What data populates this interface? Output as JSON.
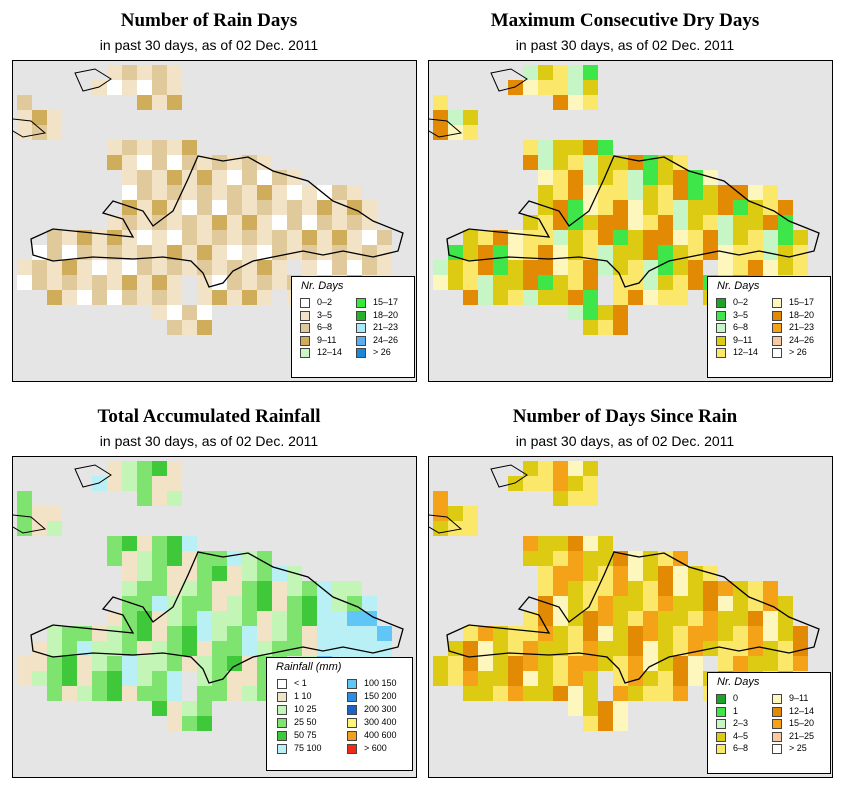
{
  "panels": [
    {
      "title": "Number of Rain Days",
      "subtitle": "in past 30 days, as of  02 Dec. 2011",
      "legend": {
        "title": "Nr. Days",
        "items": [
          {
            "label": "0–2",
            "color": "#ffffff"
          },
          {
            "label": "3–5",
            "color": "#f3e3c6"
          },
          {
            "label": "6–8",
            "color": "#e0c99a"
          },
          {
            "label": "9–11",
            "color": "#cfad5a"
          },
          {
            "label": "12–14",
            "color": "#c9f7c5"
          },
          {
            "label": "15–17",
            "color": "#35e83a"
          },
          {
            "label": "18–20",
            "color": "#27b02a"
          },
          {
            "label": "21–23",
            "color": "#a9e8f6"
          },
          {
            "label": "24–26",
            "color": "#5aaef0"
          },
          {
            "label": "> 26",
            "color": "#1c86d8"
          }
        ]
      }
    },
    {
      "title": "Maximum Consecutive Dry Days",
      "subtitle": "in past 30 days, as of  02 Dec. 2011",
      "legend": {
        "title": "Nr. Days",
        "items": [
          {
            "label": "0–2",
            "color": "#1ca32a"
          },
          {
            "label": "3–5",
            "color": "#3ee64a"
          },
          {
            "label": "6–8",
            "color": "#c6f6c6"
          },
          {
            "label": "9–11",
            "color": "#dccb12"
          },
          {
            "label": "12–14",
            "color": "#fbe86a"
          },
          {
            "label": "15–17",
            "color": "#fdf7be"
          },
          {
            "label": "18–20",
            "color": "#e38a05"
          },
          {
            "label": "21–23",
            "color": "#f4a318"
          },
          {
            "label": "24–26",
            "color": "#f8c9a4"
          },
          {
            "label": "> 26",
            "color": "#ffffff"
          }
        ]
      }
    },
    {
      "title": "Total Accumulated Rainfall",
      "subtitle": "in past 30 days, as of  02 Dec. 2011",
      "legend": {
        "title": "Rainfall (mm)",
        "items": [
          {
            "label": "< 1",
            "color": "#ffffff"
          },
          {
            "label": "1   10",
            "color": "#f3e3c6"
          },
          {
            "label": "10   25",
            "color": "#c3f5b6"
          },
          {
            "label": "25   50",
            "color": "#7fe36f"
          },
          {
            "label": "50   75",
            "color": "#3ec83a"
          },
          {
            "label": "75   100",
            "color": "#b9f0f6"
          },
          {
            "label": "100   150",
            "color": "#5fc6f5"
          },
          {
            "label": "150   200",
            "color": "#2c8de8"
          },
          {
            "label": "200   300",
            "color": "#1c63c8"
          },
          {
            "label": "300   400",
            "color": "#fdf57a"
          },
          {
            "label": "400   600",
            "color": "#f0a020"
          },
          {
            "label": "> 600",
            "color": "#f02a1a"
          }
        ]
      }
    },
    {
      "title": "Number of Days Since Rain",
      "subtitle": "in past 30 days, as of  02 Dec. 2011",
      "legend": {
        "title": "Nr. Days",
        "items": [
          {
            "label": "0",
            "color": "#1ca32a"
          },
          {
            "label": "1",
            "color": "#3ee64a"
          },
          {
            "label": "2–3",
            "color": "#c6f6c6"
          },
          {
            "label": "4–5",
            "color": "#dccb12"
          },
          {
            "label": "6–8",
            "color": "#fbe86a"
          },
          {
            "label": "9–11",
            "color": "#fdf7be"
          },
          {
            "label": "12–14",
            "color": "#e38a05"
          },
          {
            "label": "15–20",
            "color": "#f4a318"
          },
          {
            "label": "21–25",
            "color": "#f8c9a4"
          },
          {
            "label": "> 25",
            "color": "#ffffff"
          }
        ]
      }
    }
  ]
}
